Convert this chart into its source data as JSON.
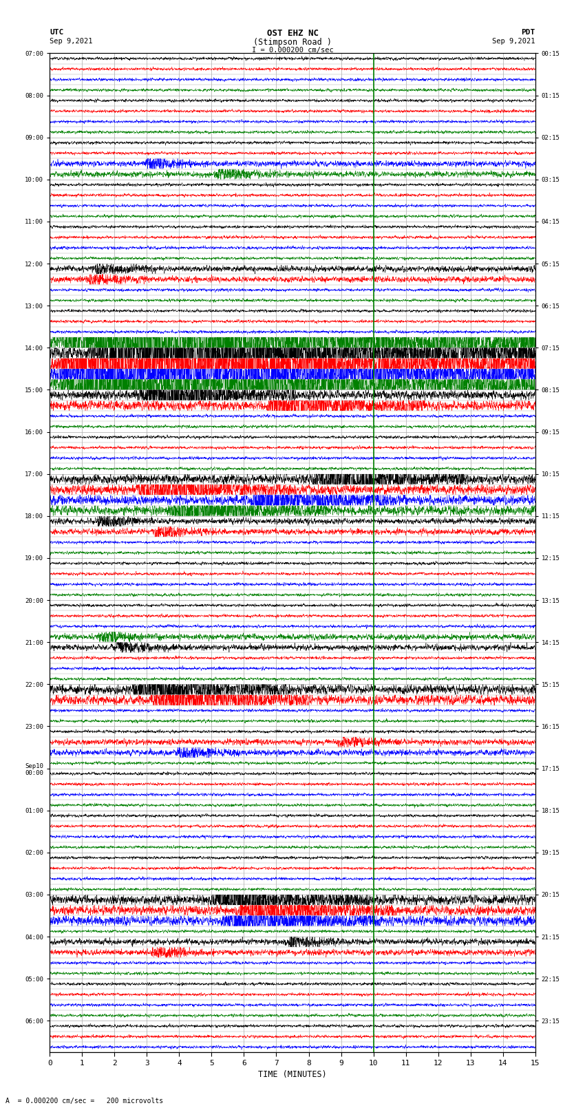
{
  "title_line1": "OST EHZ NC",
  "title_line2": "(Stimpson Road )",
  "scale_label": "I = 0.000200 cm/sec",
  "left_label_top": "UTC",
  "left_label_date": "Sep 9,2021",
  "right_label_top": "PDT",
  "right_label_date": "Sep 9,2021",
  "bottom_label": "TIME (MINUTES)",
  "bottom_note": "= 0.000200 cm/sec =   200 microvolts",
  "xlabel_ticks": [
    0,
    1,
    2,
    3,
    4,
    5,
    6,
    7,
    8,
    9,
    10,
    11,
    12,
    13,
    14,
    15
  ],
  "utc_times": [
    "07:00",
    "",
    "",
    "",
    "08:00",
    "",
    "",
    "",
    "09:00",
    "",
    "",
    "",
    "10:00",
    "",
    "",
    "",
    "11:00",
    "",
    "",
    "",
    "12:00",
    "",
    "",
    "",
    "13:00",
    "",
    "",
    "",
    "14:00",
    "",
    "",
    "",
    "15:00",
    "",
    "",
    "",
    "16:00",
    "",
    "",
    "",
    "17:00",
    "",
    "",
    "",
    "18:00",
    "",
    "",
    "",
    "19:00",
    "",
    "",
    "",
    "20:00",
    "",
    "",
    "",
    "21:00",
    "",
    "",
    "",
    "22:00",
    "",
    "",
    "",
    "23:00",
    "",
    "",
    "",
    "Sep10\n00:00",
    "",
    "",
    "",
    "01:00",
    "",
    "",
    "",
    "02:00",
    "",
    "",
    "",
    "03:00",
    "",
    "",
    "",
    "04:00",
    "",
    "",
    "",
    "05:00",
    "",
    "",
    "",
    "06:00",
    "",
    ""
  ],
  "pdt_times": [
    "00:15",
    "",
    "",
    "",
    "01:15",
    "",
    "",
    "",
    "02:15",
    "",
    "",
    "",
    "03:15",
    "",
    "",
    "",
    "04:15",
    "",
    "",
    "",
    "05:15",
    "",
    "",
    "",
    "06:15",
    "",
    "",
    "",
    "07:15",
    "",
    "",
    "",
    "08:15",
    "",
    "",
    "",
    "09:15",
    "",
    "",
    "",
    "10:15",
    "",
    "",
    "",
    "11:15",
    "",
    "",
    "",
    "12:15",
    "",
    "",
    "",
    "13:15",
    "",
    "",
    "",
    "14:15",
    "",
    "",
    "",
    "15:15",
    "",
    "",
    "",
    "16:15",
    "",
    "",
    "",
    "17:15",
    "",
    "",
    "",
    "18:15",
    "",
    "",
    "",
    "19:15",
    "",
    "",
    "",
    "20:15",
    "",
    "",
    "",
    "21:15",
    "",
    "",
    "",
    "22:15",
    "",
    "",
    "",
    "23:15",
    "",
    ""
  ],
  "trace_colors": [
    "black",
    "red",
    "blue",
    "green"
  ],
  "n_rows": 95,
  "x_min": 0,
  "x_max": 15,
  "background_color": "white",
  "grid_color": "#aaaaaa",
  "seed": 42,
  "event_rows_big": [
    27,
    28,
    29,
    30,
    31
  ],
  "event_rows_med": [
    32,
    33,
    40,
    41,
    42,
    43,
    60,
    61,
    80,
    81,
    82
  ],
  "event_rows_small": [
    10,
    11,
    20,
    21,
    44,
    45,
    55,
    56,
    65,
    66,
    84,
    85
  ]
}
